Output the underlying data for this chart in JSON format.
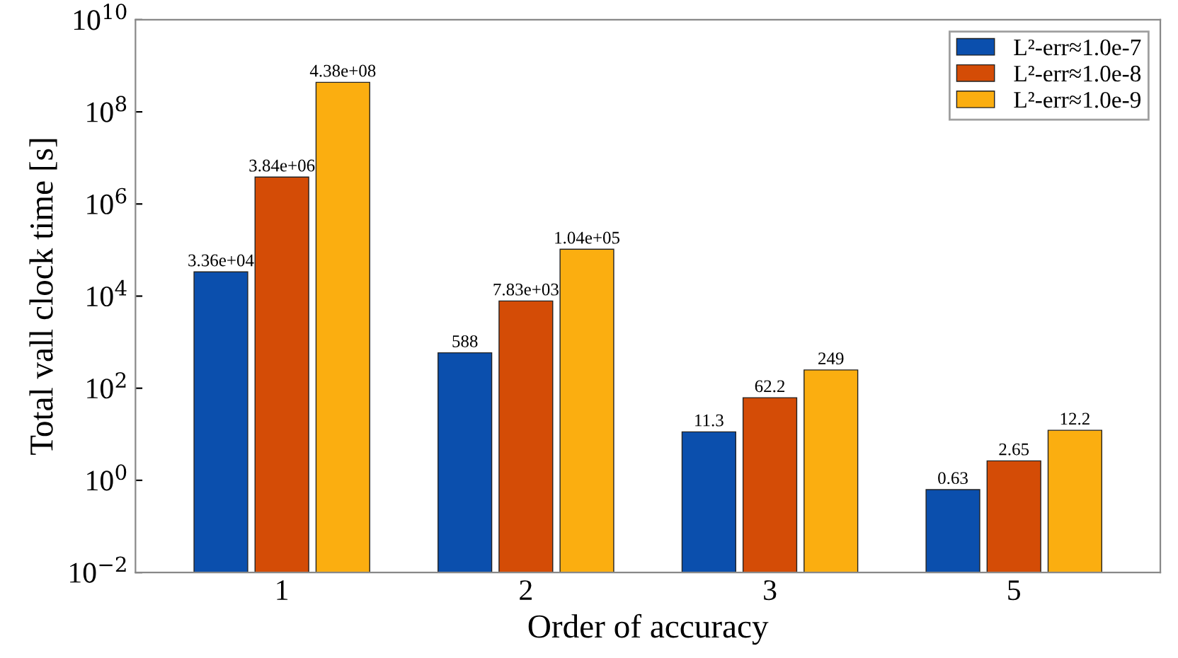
{
  "chart_data": {
    "type": "bar",
    "xlabel": "Order of accuracy",
    "ylabel": "Total vall clock time [s]",
    "categories": [
      "1",
      "2",
      "3",
      "5"
    ],
    "series": [
      {
        "name": "L²-err≈1.0e-7",
        "color": "#0b4fad",
        "values": [
          33600,
          588,
          11.3,
          0.63
        ],
        "value_labels": [
          "3.36e+04",
          "588",
          "11.3",
          "0.63"
        ]
      },
      {
        "name": "L²-err≈1.0e-8",
        "color": "#d44c06",
        "values": [
          3840000,
          7830,
          62.2,
          2.65
        ],
        "value_labels": [
          "3.84e+06",
          "7.83e+03",
          "62.2",
          "2.65"
        ]
      },
      {
        "name": "L²-err≈1.0e-9",
        "color": "#fbae10",
        "values": [
          438000000,
          104000,
          249,
          12.2
        ],
        "value_labels": [
          "4.38e+08",
          "1.04e+05",
          "249",
          "12.2"
        ]
      }
    ],
    "log": "y",
    "ylim": [
      0.01,
      10000000000
    ],
    "yticks": [
      {
        "value": 0.01,
        "label": "10$^{−2}$"
      },
      {
        "value": 1,
        "label": "10$^{0}$"
      },
      {
        "value": 100,
        "label": "10$^{2}$"
      },
      {
        "value": 10000,
        "label": "10$^{4}$"
      },
      {
        "value": 1000000,
        "label": "10$^{6}$"
      },
      {
        "value": 100000000,
        "label": "10$^{8}$"
      },
      {
        "value": 10000000000,
        "label": "10$^{10}$"
      }
    ],
    "grid": false,
    "legend": "top right"
  }
}
